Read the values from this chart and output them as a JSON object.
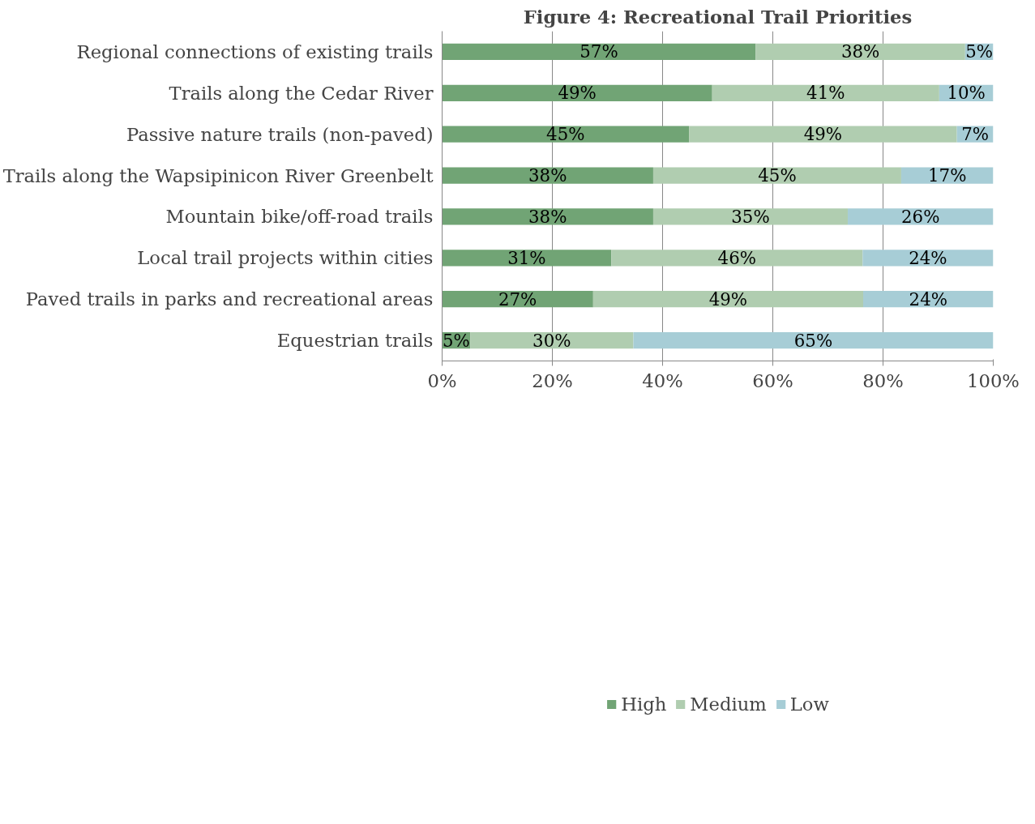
{
  "chart_data": {
    "type": "bar",
    "orientation": "horizontal",
    "stacked": true,
    "title": "Figure 4: Recreational Trail Priorities",
    "categories": [
      "Regional connections of existing trails",
      "Trails along the Cedar River",
      "Passive nature trails (non-paved)",
      "Trails along the Wapsipinicon River Greenbelt",
      "Mountain bike/off-road trails",
      "Local trail projects within cities",
      "Paved trails in parks and recreational areas",
      "Equestrian trails"
    ],
    "series": [
      {
        "name": "High",
        "color": "#71a475",
        "values": [
          56.9,
          49.0,
          44.8,
          38.3,
          38.3,
          30.7,
          27.4,
          5.1
        ],
        "value_labels": [
          "57%",
          "49%",
          "45%",
          "38%",
          "38%",
          "31%",
          "27%",
          "5%"
        ]
      },
      {
        "name": "Medium",
        "color": "#b0cdb0",
        "values": [
          38.0,
          41.2,
          48.6,
          45.0,
          35.3,
          45.6,
          49.0,
          29.6
        ],
        "value_labels": [
          "38%",
          "41%",
          "49%",
          "45%",
          "35%",
          "46%",
          "49%",
          "30%"
        ]
      },
      {
        "name": "Low",
        "color": "#a7cdd6",
        "values": [
          5.1,
          9.8,
          6.6,
          16.7,
          26.4,
          23.7,
          23.6,
          65.3
        ],
        "value_labels": [
          "5%",
          "10%",
          "7%",
          "17%",
          "26%",
          "24%",
          "24%",
          "65%"
        ]
      }
    ],
    "xlim": [
      0,
      100
    ],
    "xticks": [
      {
        "value": 0,
        "label": "0%"
      },
      {
        "value": 20,
        "label": "20%"
      },
      {
        "value": 40,
        "label": "40%"
      },
      {
        "value": 60,
        "label": "60%"
      },
      {
        "value": 80,
        "label": "80%"
      },
      {
        "value": 100,
        "label": "100%"
      }
    ],
    "grid": "x",
    "legend": "bottom"
  }
}
